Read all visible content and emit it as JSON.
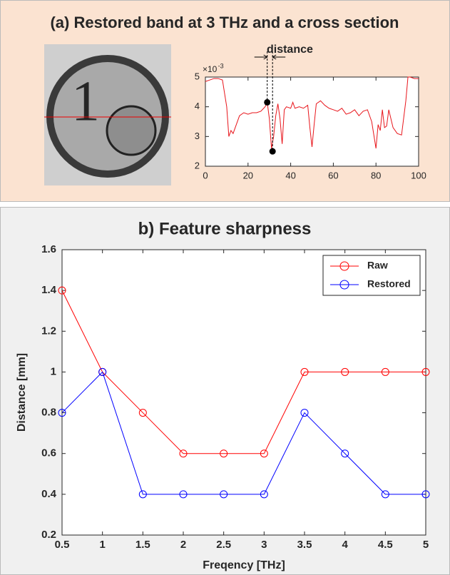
{
  "chart_data": [
    {
      "type": "line",
      "title": "(a)  Restored band at 3 THz and a cross section",
      "annotation": "distance",
      "y_multiplier": "×10",
      "y_exponent": "-3",
      "x": [
        0,
        2,
        4,
        6,
        8,
        10,
        11,
        12,
        13,
        14,
        16,
        18,
        20,
        22,
        24,
        26,
        28,
        29,
        30,
        31,
        32,
        33,
        34,
        35,
        36,
        37,
        38,
        40,
        41,
        42,
        44,
        46,
        48,
        49,
        50,
        51,
        52,
        54,
        56,
        58,
        60,
        62,
        64,
        66,
        68,
        70,
        72,
        74,
        76,
        78,
        80,
        81,
        82,
        83,
        84,
        85,
        86,
        88,
        90,
        92,
        94,
        95,
        96,
        98,
        100
      ],
      "series": [
        {
          "color": "#e8151b",
          "values": [
            4.85,
            4.9,
            4.95,
            4.95,
            4.9,
            4.0,
            3.0,
            3.2,
            3.1,
            3.3,
            3.7,
            3.8,
            3.75,
            3.8,
            3.8,
            3.85,
            4.0,
            4.15,
            3.6,
            2.6,
            3.0,
            3.7,
            4.1,
            3.6,
            2.75,
            3.9,
            4.0,
            3.95,
            4.15,
            3.95,
            4.0,
            3.95,
            4.05,
            3.3,
            2.65,
            3.4,
            4.1,
            4.2,
            4.05,
            3.95,
            3.9,
            3.85,
            3.95,
            3.75,
            3.8,
            3.9,
            3.7,
            3.85,
            3.9,
            3.5,
            2.6,
            3.4,
            3.2,
            3.9,
            3.3,
            3.35,
            3.9,
            3.3,
            3.1,
            3.05,
            4.2,
            5.0,
            5.0,
            4.95,
            4.95
          ]
        }
      ],
      "markers": {
        "color": "#000000",
        "x": [
          29,
          31.5
        ],
        "values": [
          4.15,
          2.5
        ]
      },
      "xlim": [
        0,
        100
      ],
      "xticks": [
        0,
        20,
        40,
        60,
        80,
        100
      ],
      "ylim": [
        2,
        5
      ],
      "yticks": [
        2,
        3,
        4,
        5
      ]
    },
    {
      "type": "line",
      "title": "b) Feature sharpness",
      "x_label": "Freqency [THz]",
      "y_label": "Distance [mm]",
      "x": [
        0.5,
        1,
        1.5,
        2,
        2.5,
        3,
        3.5,
        4,
        4.5,
        5
      ],
      "series": [
        {
          "name": "Raw",
          "color": "#ff0000",
          "values": [
            1.4,
            1,
            0.8,
            0.6,
            0.6,
            0.6,
            1,
            1,
            1,
            1
          ]
        },
        {
          "name": "Restored",
          "color": "#0000ff",
          "values": [
            0.8,
            1,
            0.4,
            0.4,
            0.4,
            0.4,
            0.8,
            0.6,
            0.4,
            0.4
          ]
        }
      ],
      "xlim": [
        0.5,
        5
      ],
      "xticks": [
        0.5,
        1,
        1.5,
        2,
        2.5,
        3,
        3.5,
        4,
        4.5,
        5
      ],
      "ylim": [
        0.2,
        1.6
      ],
      "yticks": [
        0.2,
        0.4,
        0.6,
        0.8,
        1,
        1.2,
        1.4,
        1.6
      ],
      "legend": "upper right"
    }
  ]
}
